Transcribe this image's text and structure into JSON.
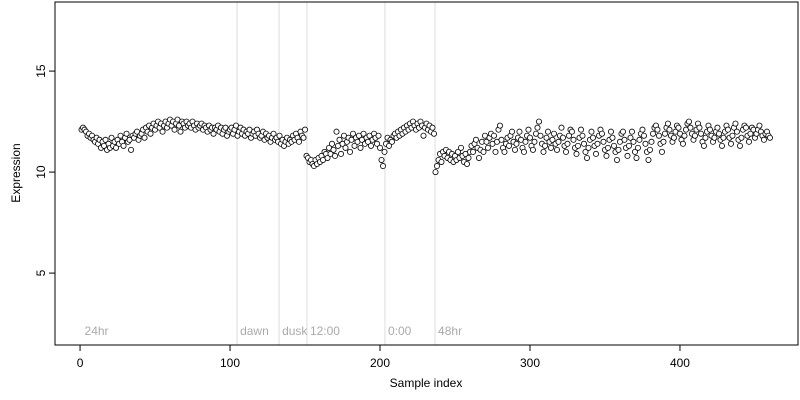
{
  "chart_data": {
    "type": "scatter",
    "xlabel": "Sample index",
    "ylabel": "Expression",
    "xlim": [
      -16.7,
      478.7
    ],
    "ylim": [
      1.44,
      18.42
    ],
    "xticks": [
      0,
      100,
      200,
      300,
      400
    ],
    "yticks": [
      5,
      10,
      15
    ],
    "vlines": [
      104.7,
      132.7,
      151.3,
      203.3,
      236.7
    ],
    "vline_color": "#dddddd",
    "annotations": [
      {
        "x": 1,
        "text": "24hr"
      },
      {
        "x": 104.7,
        "text": "dawn"
      },
      {
        "x": 132.7,
        "text": "dusk"
      },
      {
        "x": 151.3,
        "text": "12:00"
      },
      {
        "x": 203.3,
        "text": "0:00"
      },
      {
        "x": 236.7,
        "text": "48hr"
      }
    ],
    "annotation_y": 2.1,
    "annotation_color": "#aaaaaa",
    "series": [
      {
        "name": "Expression",
        "color": "#ffffff",
        "edgecolor": "#000000",
        "x": [
          1,
          2,
          3,
          4,
          5,
          6,
          7,
          8,
          9,
          10,
          11,
          12,
          13,
          14,
          15,
          16,
          17,
          18,
          19,
          20,
          21,
          22,
          23,
          24,
          25,
          26,
          27,
          28,
          29,
          30,
          31,
          32,
          33,
          34,
          35,
          36,
          37,
          38,
          39,
          40,
          41,
          42,
          43,
          44,
          45,
          46,
          47,
          48,
          49,
          50,
          51,
          52,
          53,
          54,
          55,
          56,
          57,
          58,
          59,
          60,
          61,
          62,
          63,
          64,
          65,
          66,
          67,
          68,
          69,
          70,
          71,
          72,
          73,
          74,
          75,
          76,
          77,
          78,
          79,
          80,
          81,
          82,
          83,
          84,
          85,
          86,
          87,
          88,
          89,
          90,
          91,
          92,
          93,
          94,
          95,
          96,
          97,
          98,
          99,
          100,
          101,
          102,
          103,
          104,
          105,
          106,
          107,
          108,
          109,
          110,
          111,
          112,
          113,
          114,
          115,
          116,
          117,
          118,
          119,
          120,
          121,
          122,
          123,
          124,
          125,
          126,
          127,
          128,
          129,
          130,
          131,
          132,
          133,
          134,
          135,
          136,
          137,
          138,
          139,
          140,
          141,
          142,
          143,
          144,
          145,
          146,
          147,
          148,
          149,
          150,
          151,
          152,
          153,
          154,
          155,
          156,
          157,
          158,
          159,
          160,
          161,
          162,
          163,
          164,
          165,
          166,
          167,
          168,
          169,
          170,
          171,
          172,
          173,
          174,
          175,
          176,
          177,
          178,
          179,
          180,
          181,
          182,
          183,
          184,
          185,
          186,
          187,
          188,
          189,
          190,
          191,
          192,
          193,
          194,
          195,
          196,
          197,
          198,
          199,
          200,
          201,
          202,
          203,
          204,
          205,
          206,
          207,
          208,
          209,
          210,
          211,
          212,
          213,
          214,
          215,
          216,
          217,
          218,
          219,
          220,
          221,
          222,
          223,
          224,
          225,
          226,
          227,
          228,
          229,
          230,
          231,
          232,
          233,
          234,
          235,
          236,
          237,
          238,
          239,
          240,
          241,
          242,
          243,
          244,
          245,
          246,
          247,
          248,
          249,
          250,
          251,
          252,
          253,
          254,
          255,
          256,
          257,
          258,
          259,
          260,
          261,
          262,
          263,
          264,
          265,
          266,
          267,
          268,
          269,
          270,
          271,
          272,
          273,
          274,
          275,
          276,
          277,
          278,
          279,
          280,
          281,
          282,
          283,
          284,
          285,
          286,
          287,
          288,
          289,
          290,
          291,
          292,
          293,
          294,
          295,
          296,
          297,
          298,
          299,
          300,
          301,
          302,
          303,
          304,
          305,
          306,
          307,
          308,
          309,
          310,
          311,
          312,
          313,
          314,
          315,
          316,
          317,
          318,
          319,
          320,
          321,
          322,
          323,
          324,
          325,
          326,
          327,
          328,
          329,
          330,
          331,
          332,
          333,
          334,
          335,
          336,
          337,
          338,
          339,
          340,
          341,
          342,
          343,
          344,
          345,
          346,
          347,
          348,
          349,
          350,
          351,
          352,
          353,
          354,
          355,
          356,
          357,
          358,
          359,
          360,
          361,
          362,
          363,
          364,
          365,
          366,
          367,
          368,
          369,
          370,
          371,
          372,
          373,
          374,
          375,
          376,
          377,
          378,
          379,
          380,
          381,
          382,
          383,
          384,
          385,
          386,
          387,
          388,
          389,
          390,
          391,
          392,
          393,
          394,
          395,
          396,
          397,
          398,
          399,
          400,
          401,
          402,
          403,
          404,
          405,
          406,
          407,
          408,
          409,
          410,
          411,
          412,
          413,
          414,
          415,
          416,
          417,
          418,
          419,
          420,
          421,
          422,
          423,
          424,
          425,
          426,
          427,
          428,
          429,
          430,
          431,
          432,
          433,
          434,
          435,
          436,
          437,
          438,
          439,
          440,
          441,
          442,
          443,
          444,
          445,
          446,
          447,
          448,
          449,
          450,
          451,
          452,
          453,
          454,
          455,
          456,
          457,
          458,
          459,
          460
        ],
        "values": [
          12.1,
          12.2,
          12.1,
          12.0,
          11.8,
          11.9,
          11.7,
          11.8,
          11.6,
          11.5,
          11.7,
          11.4,
          11.6,
          11.2,
          11.5,
          11.3,
          11.6,
          11.1,
          11.4,
          11.2,
          11.7,
          11.3,
          11.5,
          11.2,
          11.6,
          11.4,
          11.8,
          11.5,
          11.3,
          11.7,
          11.9,
          11.5,
          11.6,
          11.1,
          11.8,
          11.7,
          11.9,
          12.0,
          11.6,
          11.8,
          11.9,
          12.1,
          11.7,
          12.2,
          12.0,
          12.3,
          11.9,
          12.2,
          12.4,
          12.1,
          12.3,
          12.5,
          12.2,
          12.4,
          12.0,
          12.3,
          12.5,
          12.2,
          12.4,
          12.6,
          12.3,
          12.5,
          12.1,
          12.4,
          12.6,
          12.3,
          12.0,
          12.5,
          12.4,
          12.2,
          12.5,
          12.3,
          12.4,
          12.2,
          12.5,
          12.3,
          12.1,
          12.4,
          12.2,
          12.3,
          12.4,
          12.1,
          12.3,
          12.2,
          12.0,
          12.3,
          12.1,
          12.2,
          11.9,
          12.2,
          12.1,
          12.3,
          12.0,
          12.2,
          11.9,
          12.1,
          12.2,
          11.8,
          12.0,
          12.1,
          12.2,
          11.9,
          12.1,
          12.3,
          11.8,
          12.0,
          12.2,
          11.9,
          12.1,
          11.8,
          12.0,
          11.9,
          12.1,
          11.7,
          11.9,
          12.0,
          11.8,
          12.1,
          11.9,
          11.7,
          11.8,
          12.0,
          11.6,
          11.9,
          11.7,
          11.8,
          11.5,
          11.7,
          11.9,
          11.6,
          11.7,
          11.5,
          11.8,
          11.4,
          11.6,
          11.3,
          11.5,
          11.7,
          11.4,
          11.6,
          11.5,
          11.8,
          11.6,
          11.9,
          11.7,
          11.5,
          12.0,
          11.8,
          11.7,
          12.1,
          10.8,
          10.7,
          10.5,
          10.6,
          10.4,
          10.3,
          10.6,
          10.4,
          10.7,
          10.5,
          10.8,
          10.6,
          11.0,
          10.9,
          10.7,
          11.2,
          10.9,
          11.4,
          11.1,
          10.8,
          12.0,
          11.3,
          11.6,
          10.9,
          11.4,
          11.8,
          11.2,
          11.5,
          11.7,
          11.0,
          11.6,
          11.9,
          11.3,
          11.7,
          11.5,
          11.8,
          11.2,
          11.6,
          11.9,
          11.4,
          11.7,
          11.5,
          11.8,
          11.3,
          11.6,
          11.9,
          11.7,
          11.4,
          11.8,
          11.2,
          10.6,
          10.3,
          11.0,
          11.4,
          11.7,
          11.3,
          11.6,
          11.5,
          11.8,
          11.9,
          11.7,
          12.0,
          11.8,
          12.1,
          11.9,
          12.2,
          12.0,
          12.3,
          12.1,
          12.4,
          12.2,
          12.5,
          12.3,
          12.1,
          12.4,
          12.2,
          12.5,
          12.3,
          11.8,
          12.2,
          12.4,
          12.1,
          12.3,
          12.0,
          12.2,
          11.9,
          10.0,
          10.3,
          10.6,
          10.9,
          10.5,
          11.0,
          10.8,
          11.1,
          10.7,
          11.0,
          10.6,
          10.9,
          10.5,
          10.8,
          10.6,
          11.0,
          10.7,
          11.2,
          10.8,
          10.5,
          10.9,
          10.4,
          10.7,
          11.0,
          11.3,
          11.0,
          11.4,
          11.6,
          11.2,
          10.7,
          11.1,
          11.5,
          11.0,
          11.8,
          11.5,
          11.2,
          11.7,
          11.9,
          11.4,
          11.8,
          11.0,
          11.5,
          12.1,
          12.3,
          11.6,
          11.2,
          11.0,
          11.4,
          11.7,
          11.3,
          11.8,
          12.0,
          11.5,
          11.1,
          11.4,
          11.7,
          12.0,
          11.6,
          11.2,
          11.0,
          11.5,
          11.8,
          12.1,
          11.7,
          11.3,
          11.1,
          11.5,
          11.9,
          12.2,
          12.5,
          11.8,
          11.4,
          11.0,
          11.3,
          11.7,
          12.0,
          11.5,
          11.2,
          11.6,
          11.9,
          11.4,
          11.1,
          11.5,
          11.8,
          12.2,
          11.7,
          11.3,
          11.0,
          11.4,
          11.8,
          12.1,
          12.0,
          11.6,
          11.2,
          10.9,
          11.3,
          11.7,
          12.1,
          11.8,
          11.4,
          11.0,
          10.7,
          11.2,
          11.6,
          12.0,
          11.7,
          11.3,
          10.9,
          11.4,
          11.8,
          12.1,
          11.9,
          11.5,
          11.1,
          10.8,
          11.2,
          11.6,
          12.0,
          11.7,
          11.3,
          11.0,
          10.6,
          11.1,
          11.5,
          11.9,
          12.0,
          11.6,
          11.2,
          10.8,
          11.3,
          11.7,
          12.0,
          11.5,
          11.0,
          10.7,
          11.2,
          11.6,
          11.9,
          12.1,
          11.8,
          11.4,
          11.0,
          10.6,
          11.1,
          11.5,
          11.9,
          12.2,
          12.3,
          12.1,
          11.8,
          11.4,
          11.0,
          11.5,
          11.9,
          12.2,
          12.4,
          12.1,
          11.8,
          11.5,
          11.7,
          12.0,
          12.3,
          12.2,
          11.9,
          11.6,
          11.4,
          11.8,
          12.1,
          12.4,
          12.5,
          12.2,
          11.9,
          11.6,
          11.8,
          12.1,
          12.4,
          12.2,
          11.9,
          11.5,
          11.3,
          11.7,
          12.0,
          12.3,
          12.1,
          11.8,
          11.5,
          11.7,
          12.0,
          12.2,
          11.9,
          11.6,
          11.3,
          11.7,
          12.0,
          12.3,
          12.1,
          11.7,
          11.4,
          11.8,
          12.2,
          12.4,
          12.0,
          11.6,
          11.3,
          11.7,
          12.1,
          12.3,
          12.2,
          11.8,
          11.5,
          11.9,
          12.2,
          12.1,
          11.7,
          11.9,
          12.1,
          12.3,
          12.0,
          11.8,
          11.6,
          11.9,
          12.0,
          11.8,
          11.7
        ]
      }
    ]
  }
}
